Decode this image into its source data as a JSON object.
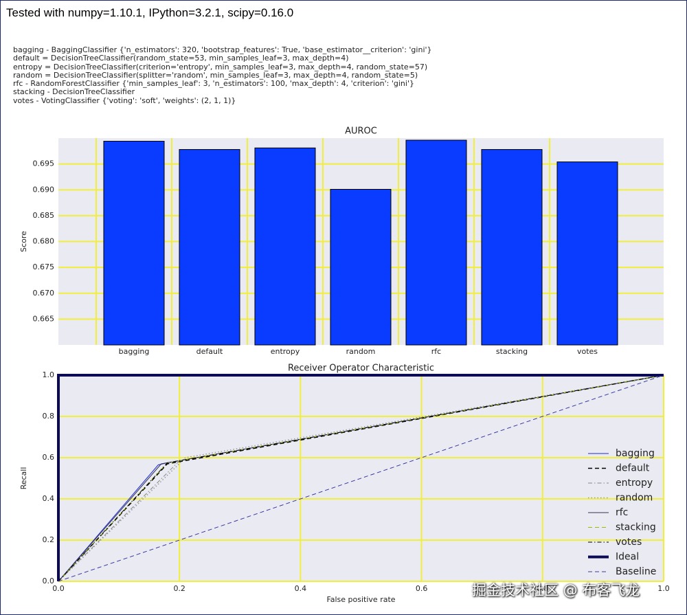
{
  "header": "Tested with numpy=1.10.1, IPython=3.2.1, scipy=0.16.0",
  "notes": [
    "bagging -  BaggingClassifier {'n_estimators': 320, 'bootstrap_features': True, 'base_estimator__criterion': 'gini'}",
    "default = DecisionTreeClassifier(random_state=53, min_samples_leaf=3, max_depth=4)",
    "entropy = DecisionTreeClassifier(criterion='entropy', min_samples_leaf=3, max_depth=4, random_state=57)",
    "random = DecisionTreeClassifier(splitter='random', min_samples_leaf=3, max_depth=4, random_state=5)",
    "rfc - RandomForestClassifier  {'min_samples_leaf': 3, 'n_estimators': 100, 'max_depth': 4, 'criterion': 'gini'}",
    "stacking - DecisionTreeClassifier",
    "votes - VotingClassifier {'voting': 'soft', 'weights': (2, 1, 1)}"
  ],
  "watermark": "掘金技术社区 @ 布客飞龙",
  "chart_data": [
    {
      "type": "bar",
      "title": "AUROC",
      "y_label": "Score",
      "categories": [
        "bagging",
        "default",
        "entropy",
        "random",
        "rfc",
        "stacking",
        "votes"
      ],
      "values": [
        0.6994,
        0.6978,
        0.6981,
        0.6901,
        0.6996,
        0.6978,
        0.6954
      ],
      "color": "#0a3cff",
      "ylim": [
        0.66,
        0.7
      ],
      "yticks": [
        0.665,
        {
          "value": 0.67,
          "label": "0.670"
        },
        0.675,
        {
          "value": 0.68,
          "label": "0.680"
        },
        0.685,
        {
          "value": 0.69,
          "label": "0.690"
        },
        0.695
      ],
      "grid": true
    },
    {
      "type": "line",
      "title": "Receiver Operator Characteristic",
      "x_label": "False positive rate",
      "y_label": "Recall",
      "xlim": [
        0,
        1
      ],
      "ylim": [
        0,
        1
      ],
      "xticks": [
        {
          "value": 0,
          "label": "0.0"
        },
        0.2,
        0.4,
        0.6,
        0.8,
        {
          "value": 1,
          "label": "1.0"
        }
      ],
      "yticks": [
        {
          "value": 0,
          "label": "0.0"
        },
        0.2,
        0.4,
        0.6,
        0.8,
        {
          "value": 1,
          "label": "1.0"
        }
      ],
      "grid": true,
      "legend": "lower right",
      "series": [
        {
          "name": "bagging",
          "color": "#1f2ccf",
          "linestyle": "solid",
          "linewidth": 1,
          "x": [
            0,
            0.165,
            0.18,
            1
          ],
          "values": [
            0,
            0.565,
            0.575,
            1
          ]
        },
        {
          "name": "default",
          "color": "#000000",
          "linestyle": "dashed",
          "linewidth": 1.5,
          "x": [
            0,
            0.18,
            1
          ],
          "values": [
            0,
            0.57,
            1
          ]
        },
        {
          "name": "entropy",
          "color": "#888888",
          "linestyle": "dashdot",
          "linewidth": 1,
          "x": [
            0,
            0.2,
            1
          ],
          "values": [
            0,
            0.585,
            1
          ]
        },
        {
          "name": "random",
          "color": "#999999",
          "linestyle": "dotted",
          "linewidth": 1.5,
          "x": [
            0,
            0.21,
            1
          ],
          "values": [
            0,
            0.6,
            1
          ]
        },
        {
          "name": "rfc",
          "color": "#333355",
          "linestyle": "solid",
          "linewidth": 1,
          "x": [
            0,
            0.17,
            1
          ],
          "values": [
            0,
            0.57,
            1
          ]
        },
        {
          "name": "stacking",
          "color": "#99bb00",
          "linestyle": "dashed",
          "linewidth": 1,
          "x": [
            0,
            0.18,
            1
          ],
          "values": [
            0,
            0.575,
            1
          ]
        },
        {
          "name": "votes",
          "color": "#000000",
          "linestyle": "dashdot",
          "linewidth": 1,
          "x": [
            0,
            0.18,
            1
          ],
          "values": [
            0,
            0.575,
            1
          ]
        },
        {
          "name": "Ideal",
          "color": "#0a0a55",
          "linestyle": "solid",
          "linewidth": 4,
          "x": [
            0,
            0,
            1
          ],
          "values": [
            0,
            1,
            1
          ]
        },
        {
          "name": "Baseline",
          "color": "#3a3aa0",
          "linestyle": "dashed",
          "linewidth": 1,
          "x": [
            0,
            1
          ],
          "values": [
            0,
            1
          ]
        }
      ]
    }
  ]
}
